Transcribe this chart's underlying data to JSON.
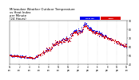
{
  "title": "Milwaukee Weather Outdoor Temperature\nvs Heat Index\nper Minute\n(24 Hours)",
  "title_fontsize": 2.8,
  "bg_color": "#ffffff",
  "plot_bg_color": "#ffffff",
  "temp_color": "#dd0000",
  "heat_color": "#0000ee",
  "ylim": [
    40,
    90
  ],
  "xlim": [
    0,
    1440
  ],
  "yticks": [
    40,
    50,
    60,
    70,
    80,
    90
  ],
  "ytick_labels": [
    "40",
    "50",
    "60",
    "70",
    "80",
    "90"
  ],
  "legend_temp_label": "Temp",
  "legend_heat_label": "Heat Idx",
  "grid_color": "#bbbbbb",
  "marker_size": 0.4,
  "dpi": 100,
  "subsample": 3
}
